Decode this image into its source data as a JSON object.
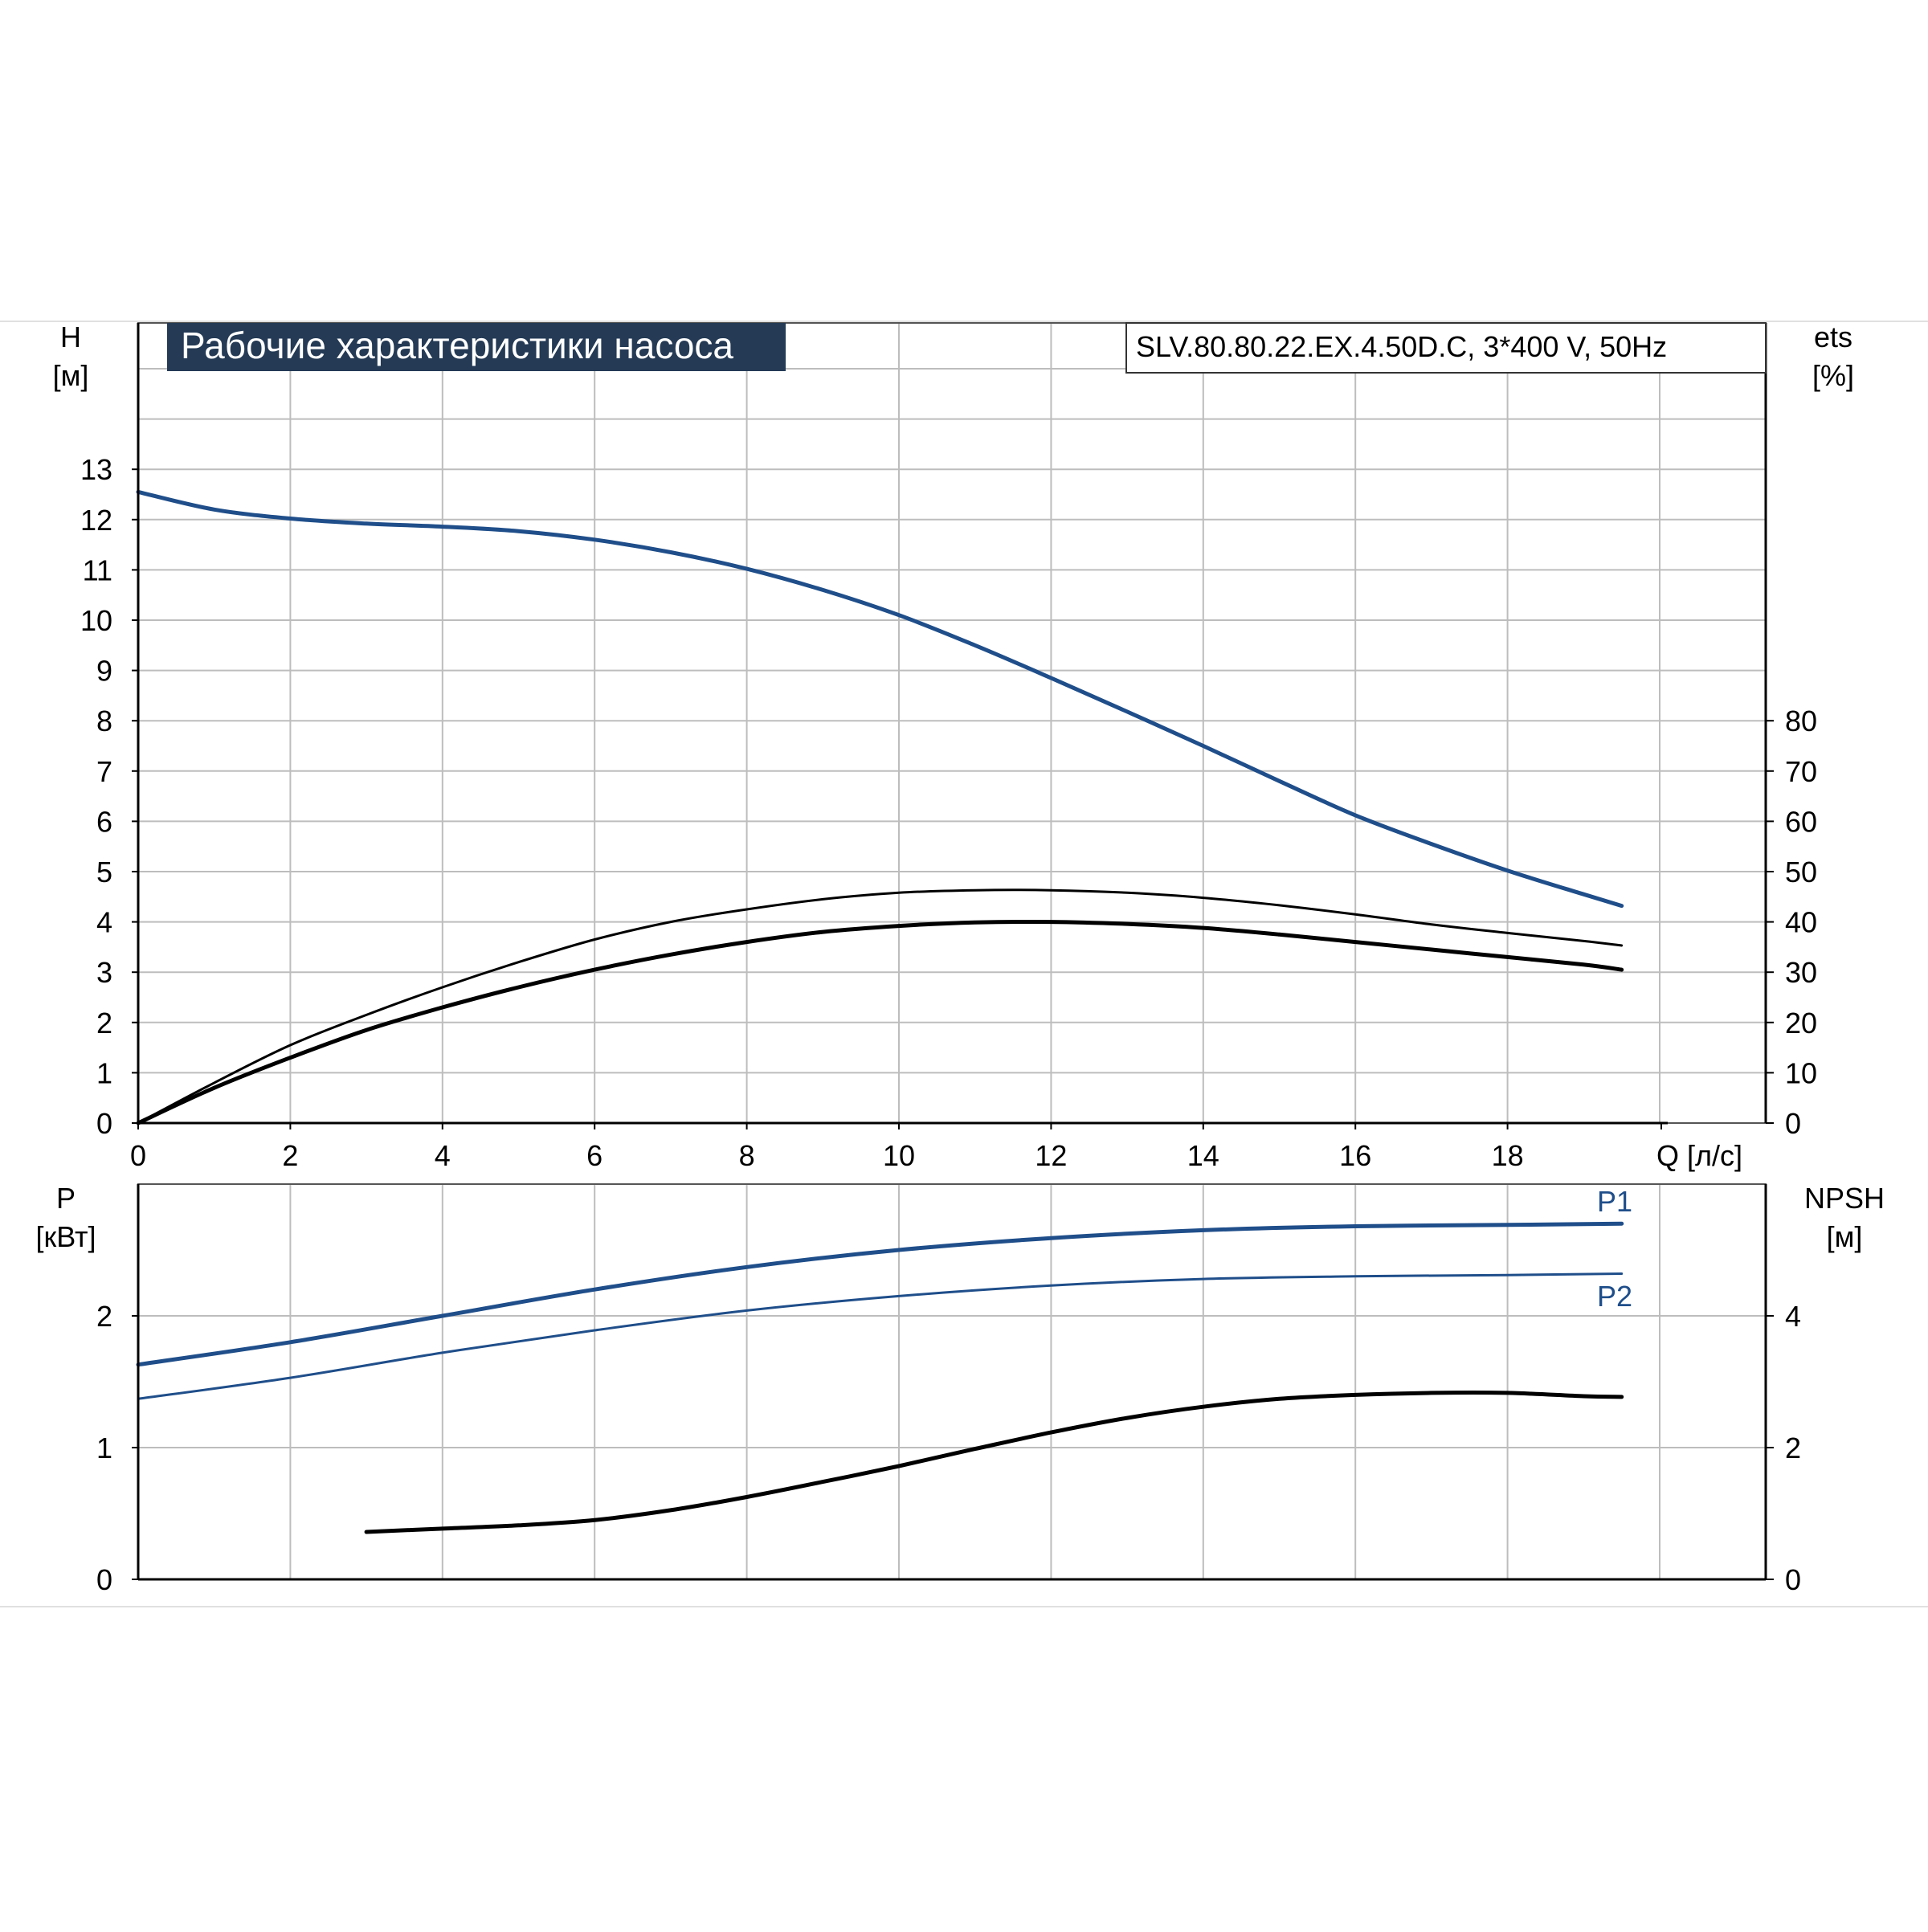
{
  "title": "Рабочие характеристики насоса",
  "model": "SLV.80.80.22.EX.4.50D.C, 3*400 V, 50Hz",
  "colors": {
    "blue": "#1f4e8a",
    "black": "#000000",
    "grid": "#bdbdbd",
    "title_bg": "#243a55",
    "title_fg": "#ffffff"
  },
  "chart_data": [
    {
      "type": "line",
      "panel": "upper",
      "xlabel": "Q [л/с]",
      "xlim": [
        0,
        20
      ],
      "x_ticks": [
        "0",
        "2",
        "4",
        "6",
        "8",
        "10",
        "12",
        "14",
        "16",
        "18"
      ],
      "y_left": {
        "label_top": "H",
        "label_unit": "[м]",
        "ylim": [
          0,
          13
        ],
        "ticks": [
          "0",
          "1",
          "2",
          "3",
          "4",
          "5",
          "6",
          "7",
          "8",
          "9",
          "10",
          "11",
          "12",
          "13"
        ]
      },
      "y_right": {
        "label_top": "ets",
        "label_unit": "[%]",
        "ylim": [
          0,
          130
        ],
        "ticks": [
          "0",
          "10",
          "20",
          "30",
          "40",
          "50",
          "60",
          "70",
          "80"
        ]
      },
      "grid": true,
      "series": [
        {
          "axis": "left",
          "color": "blue",
          "width": 5,
          "x": [
            0,
            1,
            2,
            3,
            4,
            5,
            6,
            7,
            8,
            9,
            10,
            11,
            12,
            13,
            14,
            15,
            16,
            17,
            18,
            19,
            19.5
          ],
          "y": [
            12.55,
            12.2,
            12.02,
            11.92,
            11.86,
            11.77,
            11.6,
            11.35,
            11.02,
            10.6,
            10.1,
            9.5,
            8.85,
            8.18,
            7.5,
            6.8,
            6.12,
            5.55,
            5.02,
            4.55,
            4.32
          ]
        },
        {
          "axis": "right",
          "color": "black",
          "width": 3,
          "x": [
            0,
            1,
            2,
            3,
            4,
            5,
            6,
            7,
            8,
            9,
            10,
            11,
            12,
            13,
            14,
            15,
            16,
            17,
            18,
            19,
            19.5
          ],
          "y": [
            0,
            8,
            15.5,
            21.5,
            27,
            32,
            36.5,
            40,
            42.5,
            44.5,
            45.8,
            46.3,
            46.3,
            45.8,
            44.8,
            43.3,
            41.5,
            39.5,
            37.8,
            36.2,
            35.3
          ]
        },
        {
          "axis": "right",
          "color": "black",
          "width": 5,
          "x": [
            0,
            1,
            2,
            3,
            4,
            5,
            6,
            7,
            8,
            9,
            10,
            11,
            12,
            13,
            14,
            15,
            16,
            17,
            18,
            19,
            19.5
          ],
          "y": [
            0,
            7,
            13,
            18.5,
            23,
            27,
            30.5,
            33.5,
            36,
            38,
            39.2,
            39.9,
            40,
            39.6,
            38.8,
            37.5,
            36,
            34.5,
            33,
            31.5,
            30.5
          ]
        }
      ]
    },
    {
      "type": "line",
      "panel": "lower",
      "xlim": [
        0,
        20
      ],
      "y_left": {
        "label_top": "P",
        "label_unit": "[кВт]",
        "ylim": [
          0,
          3
        ],
        "ticks": [
          "0",
          "1",
          "2"
        ]
      },
      "y_right": {
        "label_top": "NPSH",
        "label_unit": "[м]",
        "ylim": [
          0,
          6
        ],
        "ticks": [
          "0",
          "2",
          "4"
        ]
      },
      "grid": true,
      "series": [
        {
          "name": "P1",
          "axis": "left",
          "color": "blue",
          "width": 5,
          "x": [
            0,
            2,
            4,
            6,
            8,
            10,
            12,
            14,
            16,
            18,
            19.5
          ],
          "y": [
            1.63,
            1.8,
            2.0,
            2.2,
            2.37,
            2.5,
            2.59,
            2.65,
            2.68,
            2.69,
            2.7
          ]
        },
        {
          "name": "P2",
          "axis": "left",
          "color": "blue",
          "width": 3,
          "x": [
            0,
            2,
            4,
            6,
            8,
            10,
            12,
            14,
            16,
            18,
            19.5
          ],
          "y": [
            1.37,
            1.53,
            1.72,
            1.89,
            2.04,
            2.15,
            2.23,
            2.28,
            2.3,
            2.31,
            2.32
          ]
        },
        {
          "axis": "right",
          "color": "black",
          "width": 5,
          "x": [
            3,
            4,
            5,
            6,
            7,
            8,
            9,
            10,
            11,
            12,
            13,
            14,
            15,
            16,
            17,
            18,
            19,
            19.5
          ],
          "y": [
            0.72,
            0.77,
            0.82,
            0.9,
            1.05,
            1.25,
            1.48,
            1.72,
            1.98,
            2.23,
            2.45,
            2.62,
            2.74,
            2.8,
            2.83,
            2.83,
            2.78,
            2.77
          ]
        }
      ]
    }
  ]
}
